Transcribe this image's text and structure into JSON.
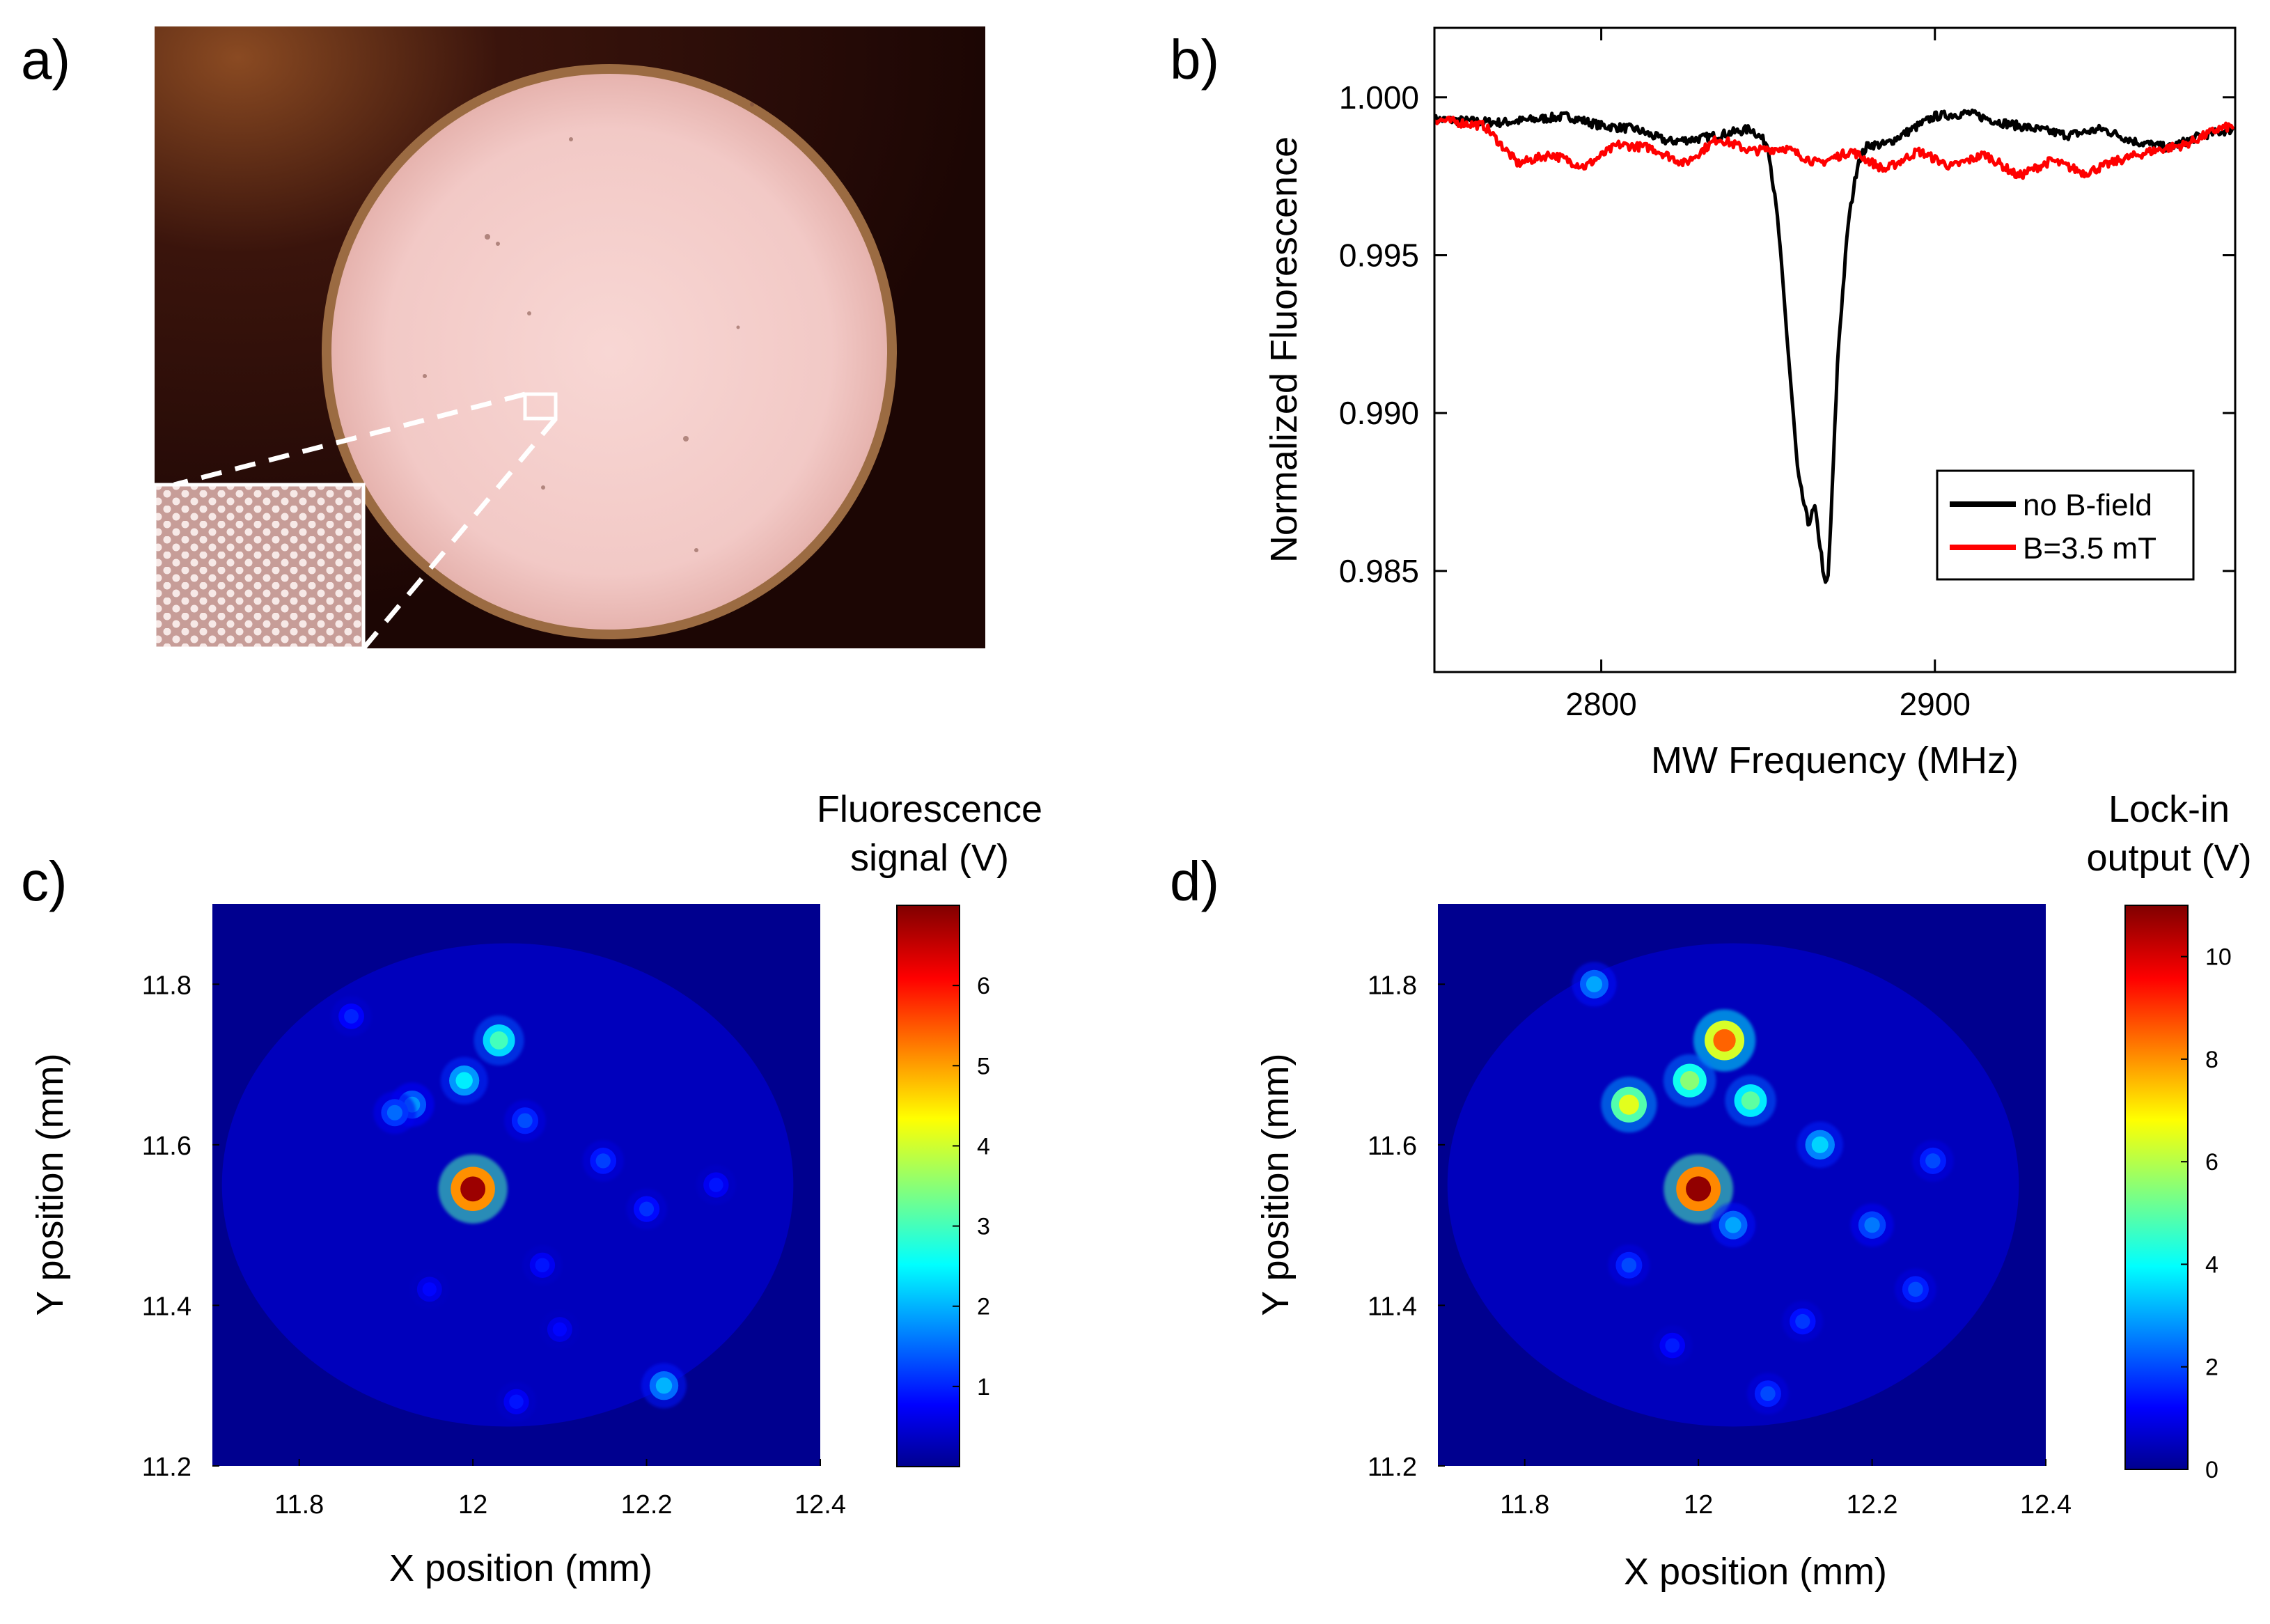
{
  "panels": {
    "a": "a)",
    "b": "b)",
    "c": "c)",
    "d": "d)"
  },
  "chart_data": [
    {
      "type": "line",
      "panel": "b",
      "title": "",
      "xlabel": "MW Frequency (MHz)",
      "ylabel": "Normalized Fluorescence",
      "xlim": [
        2750,
        2990
      ],
      "ylim": [
        0.9818,
        1.0022
      ],
      "xticks": [
        2800,
        2900
      ],
      "yticks": [
        0.985,
        0.99,
        0.995,
        1.0
      ],
      "ytick_labels": [
        "0.985",
        "0.990",
        "0.995",
        "1.000"
      ],
      "legend": "bottom-right",
      "series": [
        {
          "name": "no B-field",
          "color": "#000000",
          "x": [
            2750,
            2770,
            2790,
            2800,
            2810,
            2820,
            2830,
            2840,
            2845,
            2850,
            2853,
            2856,
            2859,
            2862,
            2864,
            2866,
            2867,
            2868,
            2869,
            2871,
            2874,
            2877,
            2880,
            2885,
            2890,
            2900,
            2910,
            2920,
            2930,
            2940,
            2950,
            2960,
            2970,
            2980,
            2990
          ],
          "y": [
            0.9993,
            0.9992,
            0.9994,
            0.9991,
            0.999,
            0.9986,
            0.9987,
            0.9989,
            0.999,
            0.9985,
            0.996,
            0.992,
            0.988,
            0.9865,
            0.987,
            0.9855,
            0.9845,
            0.9848,
            0.987,
            0.992,
            0.996,
            0.998,
            0.9985,
            0.9985,
            0.9988,
            0.9994,
            0.9995,
            0.9992,
            0.999,
            0.9988,
            0.999,
            0.9986,
            0.9984,
            0.9988,
            0.999
          ]
        },
        {
          "name": "B=3.5 mT",
          "color": "#ff0000",
          "x": [
            2750,
            2765,
            2775,
            2785,
            2795,
            2805,
            2815,
            2825,
            2835,
            2845,
            2855,
            2865,
            2875,
            2885,
            2895,
            2905,
            2915,
            2925,
            2935,
            2945,
            2955,
            2965,
            2975,
            2985,
            2990
          ],
          "y": [
            0.9993,
            0.9991,
            0.9979,
            0.9982,
            0.9978,
            0.9985,
            0.9984,
            0.9979,
            0.9987,
            0.9983,
            0.9984,
            0.9979,
            0.9983,
            0.9977,
            0.9983,
            0.9978,
            0.9982,
            0.9975,
            0.998,
            0.9976,
            0.998,
            0.9983,
            0.9985,
            0.999,
            0.9991
          ]
        }
      ]
    },
    {
      "type": "heatmap",
      "panel": "c",
      "xlabel": "X position (mm)",
      "ylabel": "Y position (mm)",
      "xlim": [
        11.7,
        12.4
      ],
      "ylim": [
        11.2,
        11.9
      ],
      "xticks": [
        11.8,
        12.0,
        12.2,
        12.4
      ],
      "xtick_labels": [
        "11.8",
        "12",
        "12.2",
        "12.4"
      ],
      "yticks": [
        11.2,
        11.4,
        11.6,
        11.8
      ],
      "ytick_labels": [
        "11.2",
        "11.4",
        "11.6",
        "11.8"
      ],
      "colorbar_label": [
        "Fluorescence",
        "signal (V)"
      ],
      "colorbar_range": [
        0,
        7
      ],
      "colorbar_ticks": [
        1,
        2,
        3,
        4,
        5,
        6
      ],
      "spots": [
        {
          "x": 12.0,
          "y": 11.545,
          "value": 6.8
        },
        {
          "x": 12.03,
          "y": 11.73,
          "value": 3.0
        },
        {
          "x": 11.99,
          "y": 11.68,
          "value": 2.4
        },
        {
          "x": 11.93,
          "y": 11.65,
          "value": 1.8
        },
        {
          "x": 11.91,
          "y": 11.64,
          "value": 1.5
        },
        {
          "x": 12.06,
          "y": 11.63,
          "value": 1.3
        },
        {
          "x": 12.15,
          "y": 11.58,
          "value": 1.2
        },
        {
          "x": 12.2,
          "y": 11.52,
          "value": 1.1
        },
        {
          "x": 11.86,
          "y": 11.76,
          "value": 1.0
        },
        {
          "x": 12.22,
          "y": 11.3,
          "value": 2.0
        },
        {
          "x": 12.08,
          "y": 11.45,
          "value": 0.9
        },
        {
          "x": 12.28,
          "y": 11.55,
          "value": 0.9
        },
        {
          "x": 11.95,
          "y": 11.42,
          "value": 0.8
        },
        {
          "x": 12.1,
          "y": 11.37,
          "value": 0.8
        },
        {
          "x": 12.05,
          "y": 11.28,
          "value": 0.9
        }
      ]
    },
    {
      "type": "heatmap",
      "panel": "d",
      "xlabel": "X position (mm)",
      "ylabel": "Y position (mm)",
      "xlim": [
        11.7,
        12.4
      ],
      "ylim": [
        11.2,
        11.9
      ],
      "xticks": [
        11.8,
        12.0,
        12.2,
        12.4
      ],
      "xtick_labels": [
        "11.8",
        "12",
        "12.2",
        "12.4"
      ],
      "yticks": [
        11.2,
        11.4,
        11.6,
        11.8
      ],
      "ytick_labels": [
        "11.2",
        "11.4",
        "11.6",
        "11.8"
      ],
      "colorbar_label": [
        "Lock-in",
        "output (V)"
      ],
      "colorbar_range": [
        0,
        11
      ],
      "colorbar_ticks": [
        0,
        2,
        4,
        6,
        8,
        10
      ],
      "spots": [
        {
          "x": 12.0,
          "y": 11.545,
          "value": 10.8
        },
        {
          "x": 12.03,
          "y": 11.73,
          "value": 8.5
        },
        {
          "x": 11.99,
          "y": 11.68,
          "value": 5.5
        },
        {
          "x": 11.92,
          "y": 11.65,
          "value": 6.5
        },
        {
          "x": 12.06,
          "y": 11.655,
          "value": 5.0
        },
        {
          "x": 12.14,
          "y": 11.6,
          "value": 3.5
        },
        {
          "x": 12.04,
          "y": 11.5,
          "value": 3.0
        },
        {
          "x": 11.88,
          "y": 11.8,
          "value": 3.0
        },
        {
          "x": 12.2,
          "y": 11.5,
          "value": 2.5
        },
        {
          "x": 12.27,
          "y": 11.58,
          "value": 2.0
        },
        {
          "x": 11.92,
          "y": 11.45,
          "value": 2.0
        },
        {
          "x": 12.08,
          "y": 11.29,
          "value": 2.0
        },
        {
          "x": 12.25,
          "y": 11.42,
          "value": 2.0
        },
        {
          "x": 12.12,
          "y": 11.38,
          "value": 1.8
        },
        {
          "x": 11.97,
          "y": 11.35,
          "value": 1.5
        }
      ]
    }
  ]
}
